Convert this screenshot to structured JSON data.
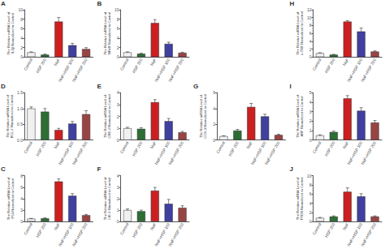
{
  "chart_data": [
    {
      "type": "bar",
      "title": "A",
      "ylabel": "The Relative mRNA Level of\nIL1β Normalized to Control",
      "categories": [
        "Control",
        "HSP 200",
        "NaF",
        "NaF+HSP 100",
        "NaF+HSP 200"
      ],
      "values": [
        1.0,
        0.5,
        7.5,
        2.5,
        1.7
      ],
      "errors": [
        0.1,
        0.12,
        0.85,
        0.4,
        0.3
      ],
      "colors": [
        "#f0f0f0",
        "#2d6e35",
        "#cc2020",
        "#4040a0",
        "#994444"
      ],
      "ylim": [
        0,
        10
      ],
      "yticks": [
        0,
        2,
        4,
        6,
        8,
        10
      ],
      "grid": false
    },
    {
      "type": "bar",
      "title": "B",
      "ylabel": "The Relative mRNA Level of\nNFκB Normalized to Control",
      "categories": [
        "Control",
        "HSP 200",
        "NaF",
        "NaF+HSP 100",
        "NaF+HSP 200"
      ],
      "values": [
        1.0,
        0.7,
        7.2,
        2.8,
        0.9
      ],
      "errors": [
        0.1,
        0.1,
        0.7,
        0.35,
        0.12
      ],
      "colors": [
        "#f0f0f0",
        "#2d6e35",
        "#cc2020",
        "#4040a0",
        "#994444"
      ],
      "ylim": [
        0,
        10
      ],
      "yticks": [
        0,
        2,
        4,
        6,
        8,
        10
      ],
      "grid": false
    },
    {
      "type": "bar",
      "title": "H",
      "ylabel": "The Relative mRNA Level of\nα-TNF Normalized to Control",
      "categories": [
        "Control",
        "HSP 200",
        "NaF",
        "NaF+HSP 100",
        "NaF+HSP 200"
      ],
      "values": [
        1.0,
        0.6,
        9.0,
        6.5,
        1.4
      ],
      "errors": [
        0.1,
        0.1,
        0.25,
        0.85,
        0.18
      ],
      "colors": [
        "#f0f0f0",
        "#2d6e35",
        "#cc2020",
        "#4040a0",
        "#994444"
      ],
      "ylim": [
        0,
        12
      ],
      "yticks": [
        0,
        2,
        4,
        6,
        8,
        10,
        12
      ],
      "grid": false
    },
    {
      "type": "bar",
      "title": "D",
      "ylabel": "The Relative mRNA Level of\nBCL-2 Normalized to Control",
      "categories": [
        "Control",
        "HSP 200",
        "NaF",
        "NaF+HSP 100",
        "NaF+HSP 200"
      ],
      "values": [
        1.0,
        0.9,
        0.32,
        0.52,
        0.82
      ],
      "errors": [
        0.05,
        0.1,
        0.05,
        0.07,
        0.11
      ],
      "colors": [
        "#f0f0f0",
        "#2d6e35",
        "#cc2020",
        "#4040a0",
        "#994444"
      ],
      "ylim": [
        0,
        1.5
      ],
      "yticks": [
        {
          "value": 0.0,
          "label": "0.0"
        },
        0.5,
        {
          "value": 1.0,
          "label": "1.0"
        },
        1.5
      ],
      "grid": false
    },
    {
      "type": "bar",
      "title": "E",
      "ylabel": "The Relative mRNA Level of\nCRE-4 Normalized to Control",
      "categories": [
        "Control",
        "HSP 200",
        "NaF",
        "NaF+HSP 100",
        "NaF+HSP 200"
      ],
      "values": [
        1.0,
        0.95,
        3.2,
        1.6,
        0.65
      ],
      "errors": [
        0.08,
        0.1,
        0.22,
        0.22,
        0.08
      ],
      "colors": [
        "#f0f0f0",
        "#2d6e35",
        "#cc2020",
        "#4040a0",
        "#994444"
      ],
      "ylim": [
        0,
        4
      ],
      "yticks": [
        0,
        1,
        2,
        3,
        4
      ],
      "grid": false
    },
    {
      "type": "bar",
      "title": "G",
      "ylabel": "The Relative mRNA Level of\nCOX-3 Normalized to Control",
      "categories": [
        "Control",
        "HSP 200",
        "NaF",
        "NaF+HSP 100",
        "NaF+HSP 200"
      ],
      "values": [
        0.5,
        1.2,
        4.2,
        3.0,
        0.65
      ],
      "errors": [
        0.05,
        0.15,
        0.45,
        0.28,
        0.08
      ],
      "colors": [
        "#f0f0f0",
        "#2d6e35",
        "#cc2020",
        "#4040a0",
        "#994444"
      ],
      "ylim": [
        0,
        6
      ],
      "yticks": [
        0,
        2,
        4,
        6
      ],
      "grid": false
    },
    {
      "type": "bar",
      "title": "I",
      "ylabel": "The Relative mRNA Level of\nARF Normalized to Control",
      "categories": [
        "Control",
        "HSP 200",
        "NaF",
        "NaF+HSP 100",
        "NaF+HSP 200"
      ],
      "values": [
        0.5,
        0.85,
        4.4,
        3.1,
        1.85
      ],
      "errors": [
        0.05,
        0.1,
        0.3,
        0.32,
        0.22
      ],
      "colors": [
        "#f0f0f0",
        "#2d6e35",
        "#cc2020",
        "#4040a0",
        "#994444"
      ],
      "ylim": [
        0,
        5
      ],
      "yticks": [
        0,
        1,
        2,
        3,
        4,
        5
      ],
      "grid": false
    },
    {
      "type": "bar",
      "title": "C",
      "ylabel": "The Relative mRNA Level of\nP53 Normalized to Control",
      "categories": [
        "Control",
        "HSP 200",
        "NaF",
        "NaF+HSP 100",
        "NaF+HSP 200"
      ],
      "values": [
        0.5,
        0.55,
        7.0,
        4.5,
        1.1
      ],
      "errors": [
        0.05,
        0.08,
        0.45,
        0.38,
        0.14
      ],
      "colors": [
        "#f0f0f0",
        "#2d6e35",
        "#cc2020",
        "#4040a0",
        "#994444"
      ],
      "ylim": [
        0,
        8
      ],
      "yticks": [
        0,
        2,
        4,
        6,
        8
      ],
      "grid": false
    },
    {
      "type": "bar",
      "title": "F",
      "ylabel": "The Relative mRNA Level of\nCIE-9 Normalized to Control",
      "categories": [
        "Control",
        "HSP 200",
        "NaF",
        "NaF+HSP 100",
        "NaF+HSP 200"
      ],
      "values": [
        1.0,
        0.9,
        2.7,
        1.55,
        1.2
      ],
      "errors": [
        0.1,
        0.1,
        0.28,
        0.38,
        0.18
      ],
      "colors": [
        "#f0f0f0",
        "#2d6e35",
        "#cc2020",
        "#4040a0",
        "#994444"
      ],
      "ylim": [
        0,
        4
      ],
      "yticks": [
        0,
        1,
        2,
        3,
        4
      ],
      "grid": false
    },
    {
      "type": "bar",
      "title": "J",
      "ylabel": "The Relative mRNA Level of\nPTEN Normalized to Control",
      "categories": [
        "Control",
        "HSP 200",
        "NaF",
        "NaF+HSP 100",
        "NaF+HSP 200"
      ],
      "values": [
        0.8,
        1.1,
        6.5,
        5.5,
        1.1
      ],
      "errors": [
        0.1,
        0.14,
        0.85,
        0.58,
        0.14
      ],
      "colors": [
        "#f0f0f0",
        "#2d6e35",
        "#cc2020",
        "#4040a0",
        "#994444"
      ],
      "ylim": [
        0,
        10
      ],
      "yticks": [
        0,
        2,
        4,
        6,
        8,
        10
      ],
      "grid": false
    }
  ]
}
